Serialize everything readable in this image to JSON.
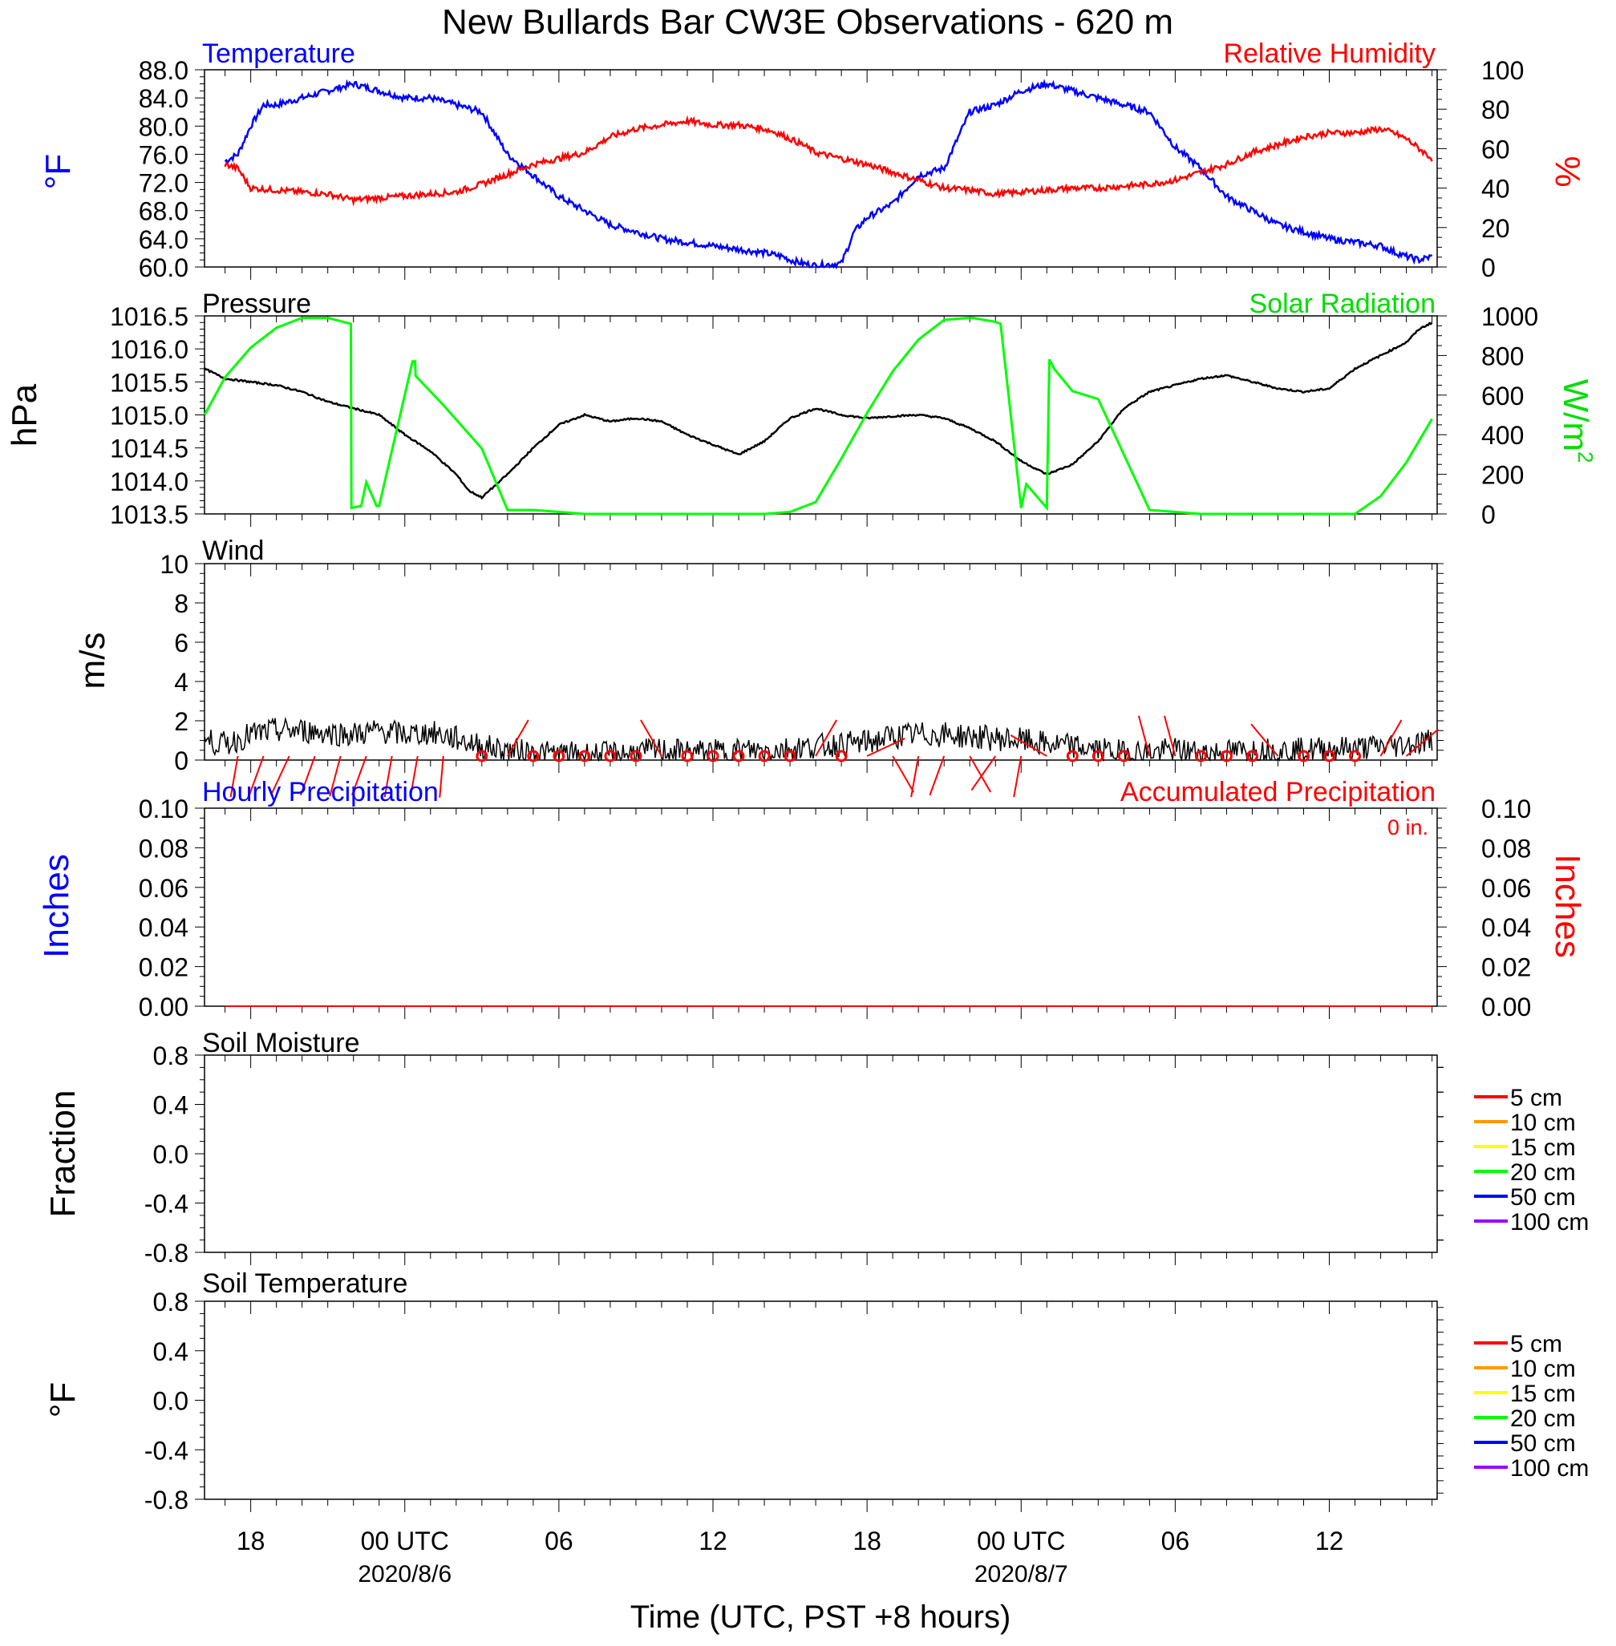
{
  "title": "New Bullards Bar CW3E Observations - 620 m",
  "x_axis": {
    "label": "Time (UTC, PST +8 hours)",
    "ticks": [
      "18",
      "00 UTC",
      "06",
      "12",
      "18",
      "00 UTC",
      "06",
      "12"
    ],
    "dates": [
      "2020/8/6",
      "2020/8/7"
    ]
  },
  "colors": {
    "temperature": "#0000ff",
    "humidity": "#ff0000",
    "pressure": "#000000",
    "solar": "#00ff00",
    "wind": "#000000",
    "barbs": "#ff0000",
    "precip_hourly": "#0000ff",
    "precip_accum": "#ff0000"
  },
  "panels": {
    "temp_rh": {
      "left_title": "Temperature",
      "right_title": "Relative Humidity",
      "left_ylabel": "°F",
      "right_ylabel": "%",
      "left_ticks": [
        "88.0",
        "84.0",
        "80.0",
        "76.0",
        "72.0",
        "68.0",
        "64.0",
        "60.0"
      ],
      "right_ticks": [
        "100",
        "80",
        "60",
        "40",
        "20",
        "0"
      ]
    },
    "pressure_solar": {
      "left_title": "Pressure",
      "right_title": "Solar Radiation",
      "left_ylabel": "hPa",
      "right_ylabel": "W/m",
      "right_ylabel_sup": "2",
      "left_ticks": [
        "1016.5",
        "1016.0",
        "1015.5",
        "1015.0",
        "1014.5",
        "1014.0",
        "1013.5"
      ],
      "right_ticks": [
        "1000",
        "800",
        "600",
        "400",
        "200",
        "0"
      ]
    },
    "wind": {
      "left_title": "Wind",
      "left_ylabel": "m/s",
      "left_ticks": [
        "10",
        "8",
        "6",
        "4",
        "2",
        "0"
      ]
    },
    "precip": {
      "left_title": "Hourly Precipitation",
      "right_title": "Accumulated Precipitation",
      "total_label": "0 in.",
      "left_ylabel": "Inches",
      "right_ylabel": "Inches",
      "left_ticks": [
        "0.10",
        "0.08",
        "0.06",
        "0.04",
        "0.02",
        "0.00"
      ],
      "right_ticks": [
        "0.10",
        "0.08",
        "0.06",
        "0.04",
        "0.02",
        "0.00"
      ]
    },
    "soil_moisture": {
      "left_title": "Soil Moisture",
      "left_ylabel": "Fraction",
      "left_ticks": [
        "0.8",
        "0.4",
        "0.0",
        "-0.4",
        "-0.8"
      ]
    },
    "soil_temp": {
      "left_title": "Soil Temperature",
      "left_ylabel": "°F",
      "left_ticks": [
        "0.8",
        "0.4",
        "0.0",
        "-0.4",
        "-0.8"
      ]
    }
  },
  "soil_legend": [
    {
      "label": "5 cm",
      "color": "#ff0000"
    },
    {
      "label": "10 cm",
      "color": "#ff9900"
    },
    {
      "label": "15 cm",
      "color": "#ffff00"
    },
    {
      "label": "20 cm",
      "color": "#00ff00"
    },
    {
      "label": "50 cm",
      "color": "#0000ff"
    },
    {
      "label": "100 cm",
      "color": "#9900ff"
    }
  ],
  "chart_data": [
    {
      "type": "line",
      "x_unit": "hours since 2020-08-05 00:00 UTC",
      "xlim": [
        16.2,
        64.2
      ],
      "series": [
        {
          "name": "Temperature",
          "axis": "left",
          "ylim": [
            60,
            88
          ],
          "x": [
            17,
            17.5,
            18,
            18.5,
            19,
            20,
            21,
            22,
            23,
            24,
            25,
            26,
            27,
            28,
            29,
            30,
            31,
            32,
            33,
            34,
            35,
            36,
            37,
            38,
            38.7,
            39,
            39.5,
            40,
            41,
            41.5,
            42,
            43,
            44,
            45,
            46,
            47,
            48,
            49,
            50,
            51,
            52,
            53,
            54,
            55,
            56,
            57,
            58,
            59,
            60,
            61,
            62,
            62.3,
            62.6,
            63,
            63.5,
            64
          ],
          "y": [
            75,
            76,
            80,
            83,
            83,
            84,
            85,
            86,
            85,
            84,
            84,
            83,
            82,
            76,
            73,
            70,
            68,
            66,
            65,
            64,
            63.5,
            63,
            62.5,
            62,
            61.5,
            61,
            60.5,
            60.2,
            60.5,
            65,
            67,
            69,
            73,
            74,
            82,
            83,
            85,
            86,
            85,
            84,
            83,
            82,
            77,
            74,
            70,
            68,
            66,
            65,
            64,
            63.5,
            63,
            62.5,
            62,
            61.5,
            61,
            61.5
          ]
        },
        {
          "name": "Relative Humidity",
          "axis": "right",
          "ylim": [
            0,
            100
          ],
          "x": [
            17,
            17.5,
            18,
            19,
            20,
            21,
            22,
            23,
            24,
            25,
            26,
            27,
            28,
            29,
            30,
            31,
            32,
            33,
            34,
            35,
            36,
            37,
            38,
            38.5,
            39,
            39.5,
            40,
            41,
            42,
            43,
            44,
            45,
            46,
            47,
            48,
            49,
            50,
            51,
            52,
            53,
            54,
            55,
            56,
            57,
            58,
            59,
            60,
            61,
            62,
            62.5,
            63,
            63.5,
            64
          ],
          "y": [
            52,
            50,
            40,
            39,
            38,
            37,
            34,
            35,
            36,
            37,
            38,
            42,
            47,
            52,
            55,
            58,
            66,
            70,
            72,
            74,
            72,
            72,
            70,
            68,
            65,
            62,
            58,
            55,
            52,
            48,
            44,
            40,
            39,
            37,
            38,
            39,
            40,
            40,
            41,
            42,
            44,
            48,
            52,
            58,
            62,
            66,
            68,
            68,
            70,
            68,
            65,
            60,
            55
          ]
        }
      ]
    },
    {
      "type": "line",
      "x_unit": "hours since 2020-08-05 00:00 UTC",
      "xlim": [
        16.2,
        64.2
      ],
      "series": [
        {
          "name": "Pressure",
          "axis": "left",
          "ylim": [
            1013.5,
            1016.5
          ],
          "x": [
            16.2,
            17,
            18,
            19,
            20,
            21,
            22,
            23,
            24,
            25,
            26,
            26.5,
            27,
            28,
            29,
            30,
            31,
            32,
            33,
            34,
            35,
            36,
            37,
            38,
            39,
            40,
            41,
            42,
            43,
            44,
            45,
            46,
            47,
            48,
            49,
            50,
            51,
            52,
            53,
            54,
            55,
            56,
            57,
            58,
            59,
            60,
            61,
            62,
            63,
            63.5,
            64
          ],
          "y": [
            1015.7,
            1015.55,
            1015.5,
            1015.45,
            1015.35,
            1015.2,
            1015.1,
            1015.0,
            1014.7,
            1014.45,
            1014.1,
            1013.85,
            1013.75,
            1014.1,
            1014.5,
            1014.85,
            1015.0,
            1014.9,
            1014.95,
            1014.9,
            1014.7,
            1014.55,
            1014.4,
            1014.6,
            1014.95,
            1015.1,
            1015.0,
            1014.95,
            1014.98,
            1015.0,
            1014.95,
            1014.8,
            1014.6,
            1014.3,
            1014.1,
            1014.25,
            1014.6,
            1015.1,
            1015.35,
            1015.45,
            1015.55,
            1015.6,
            1015.5,
            1015.4,
            1015.35,
            1015.4,
            1015.7,
            1015.9,
            1016.1,
            1016.3,
            1016.4
          ]
        },
        {
          "name": "Solar Radiation",
          "axis": "right",
          "ylim": [
            0,
            1000
          ],
          "x": [
            16.2,
            17,
            18,
            19,
            20,
            21,
            21.9,
            21.9,
            22.3,
            22.5,
            22.9,
            23.0,
            24.3,
            24.4,
            24.4,
            25.5,
            27,
            28,
            29,
            30,
            31,
            32,
            33,
            34,
            35,
            36,
            37,
            38,
            39,
            40,
            41,
            42,
            43,
            44,
            45,
            46,
            46.1,
            47,
            47.2,
            48,
            48.2,
            49.0,
            49.1,
            49.3,
            50.0,
            51,
            52,
            53,
            54,
            55,
            56,
            57,
            58,
            59,
            60,
            61,
            62,
            63,
            64
          ],
          "y": [
            500,
            690,
            840,
            940,
            990,
            990,
            960,
            30,
            40,
            160,
            40,
            40,
            770,
            770,
            700,
            550,
            330,
            20,
            20,
            10,
            0,
            0,
            0,
            0,
            0,
            0,
            0,
            0,
            10,
            60,
            280,
            510,
            720,
            880,
            980,
            990,
            990,
            970,
            960,
            30,
            150,
            30,
            780,
            730,
            620,
            580,
            300,
            20,
            10,
            0,
            0,
            0,
            0,
            0,
            0,
            0,
            90,
            260,
            480
          ]
        }
      ]
    },
    {
      "type": "line",
      "x_unit": "hours since 2020-08-05 00:00 UTC",
      "xlim": [
        16.2,
        64.2
      ],
      "ylim": [
        0,
        10
      ],
      "series": [
        {
          "name": "Wind",
          "x": [
            16.2,
            17,
            18,
            19,
            20,
            21,
            22,
            23,
            24,
            25,
            26,
            27,
            28,
            29,
            30,
            31,
            32,
            33,
            34,
            35,
            36,
            37,
            38,
            39,
            40,
            41,
            42,
            43,
            44,
            45,
            46,
            47,
            48,
            49,
            50,
            51,
            52,
            53,
            54,
            55,
            56,
            57,
            58,
            59,
            60,
            61,
            62,
            63,
            64
          ],
          "y": [
            1.0,
            0.8,
            1.3,
            1.5,
            1.5,
            1.4,
            1.3,
            1.5,
            1.3,
            1.4,
            1.1,
            0.7,
            0.5,
            0.4,
            0.3,
            0.3,
            0.3,
            0.4,
            0.5,
            0.4,
            0.4,
            0.5,
            0.5,
            0.6,
            0.7,
            0.8,
            0.9,
            1.2,
            1.3,
            1.3,
            1.2,
            1.1,
            1.0,
            0.8,
            0.7,
            0.5,
            0.4,
            0.4,
            0.5,
            0.4,
            0.4,
            0.5,
            0.5,
            0.5,
            0.6,
            0.6,
            0.7,
            0.8,
            1.0
          ]
        }
      ],
      "barbs": [
        {
          "x": 17.5,
          "calm": false,
          "dir_deg": 190
        },
        {
          "x": 18.5,
          "calm": false,
          "dir_deg": 200
        },
        {
          "x": 19.5,
          "calm": false,
          "dir_deg": 205
        },
        {
          "x": 20.5,
          "calm": false,
          "dir_deg": 200
        },
        {
          "x": 21.5,
          "calm": false,
          "dir_deg": 195
        },
        {
          "x": 22.5,
          "calm": false,
          "dir_deg": 200
        },
        {
          "x": 23.5,
          "calm": false,
          "dir_deg": 190
        },
        {
          "x": 24.5,
          "calm": false,
          "dir_deg": 190
        },
        {
          "x": 25.5,
          "calm": false,
          "dir_deg": 185
        },
        {
          "x": 27.0,
          "calm": true
        },
        {
          "x": 28.0,
          "calm": false,
          "dir_deg": 30
        },
        {
          "x": 29.0,
          "calm": true
        },
        {
          "x": 30.0,
          "calm": true
        },
        {
          "x": 31.0,
          "calm": true
        },
        {
          "x": 32.0,
          "calm": true
        },
        {
          "x": 33.0,
          "calm": true
        },
        {
          "x": 34.0,
          "calm": false,
          "dir_deg": 330
        },
        {
          "x": 35.0,
          "calm": true
        },
        {
          "x": 36.0,
          "calm": true
        },
        {
          "x": 37.0,
          "calm": true
        },
        {
          "x": 38.0,
          "calm": true
        },
        {
          "x": 39.0,
          "calm": true
        },
        {
          "x": 40.0,
          "calm": false,
          "dir_deg": 30
        },
        {
          "x": 41.0,
          "calm": true
        },
        {
          "x": 42.0,
          "calm": false,
          "dir_deg": 65
        },
        {
          "x": 43.0,
          "calm": false,
          "dir_deg": 150
        },
        {
          "x": 44.0,
          "calm": false,
          "dir_deg": 190
        },
        {
          "x": 45.0,
          "calm": false,
          "dir_deg": 200
        },
        {
          "x": 46.0,
          "calm": false,
          "dir_deg": 150
        },
        {
          "x": 47.0,
          "calm": false,
          "dir_deg": 215
        },
        {
          "x": 48.0,
          "calm": false,
          "dir_deg": 190
        },
        {
          "x": 49.0,
          "calm": false,
          "dir_deg": 300
        },
        {
          "x": 50.0,
          "calm": true
        },
        {
          "x": 51.0,
          "calm": true
        },
        {
          "x": 52.0,
          "calm": true
        },
        {
          "x": 53.0,
          "calm": false,
          "dir_deg": 345
        },
        {
          "x": 54.0,
          "calm": false,
          "dir_deg": 345
        },
        {
          "x": 55.0,
          "calm": true
        },
        {
          "x": 56.0,
          "calm": true
        },
        {
          "x": 57.0,
          "calm": true
        },
        {
          "x": 58.0,
          "calm": false,
          "dir_deg": 320
        },
        {
          "x": 59.0,
          "calm": true
        },
        {
          "x": 60.0,
          "calm": true
        },
        {
          "x": 61.0,
          "calm": true
        },
        {
          "x": 62.0,
          "calm": false,
          "dir_deg": 30
        },
        {
          "x": 63.0,
          "calm": false,
          "dir_deg": 50
        }
      ]
    },
    {
      "type": "line",
      "x_unit": "hours since 2020-08-05 00:00 UTC",
      "xlim": [
        16.2,
        64.2
      ],
      "ylim": [
        0,
        0.1
      ],
      "series": [
        {
          "name": "Hourly Precipitation",
          "x": [
            17,
            64
          ],
          "y": [
            0,
            0
          ]
        },
        {
          "name": "Accumulated Precipitation",
          "x": [
            17,
            64
          ],
          "y": [
            0,
            0
          ]
        }
      ]
    },
    {
      "type": "line",
      "xlim": [
        16.2,
        64.2
      ],
      "ylim": [
        -1,
        1
      ],
      "series": []
    },
    {
      "type": "line",
      "xlim": [
        16.2,
        64.2
      ],
      "ylim": [
        -1,
        1
      ],
      "series": []
    }
  ]
}
